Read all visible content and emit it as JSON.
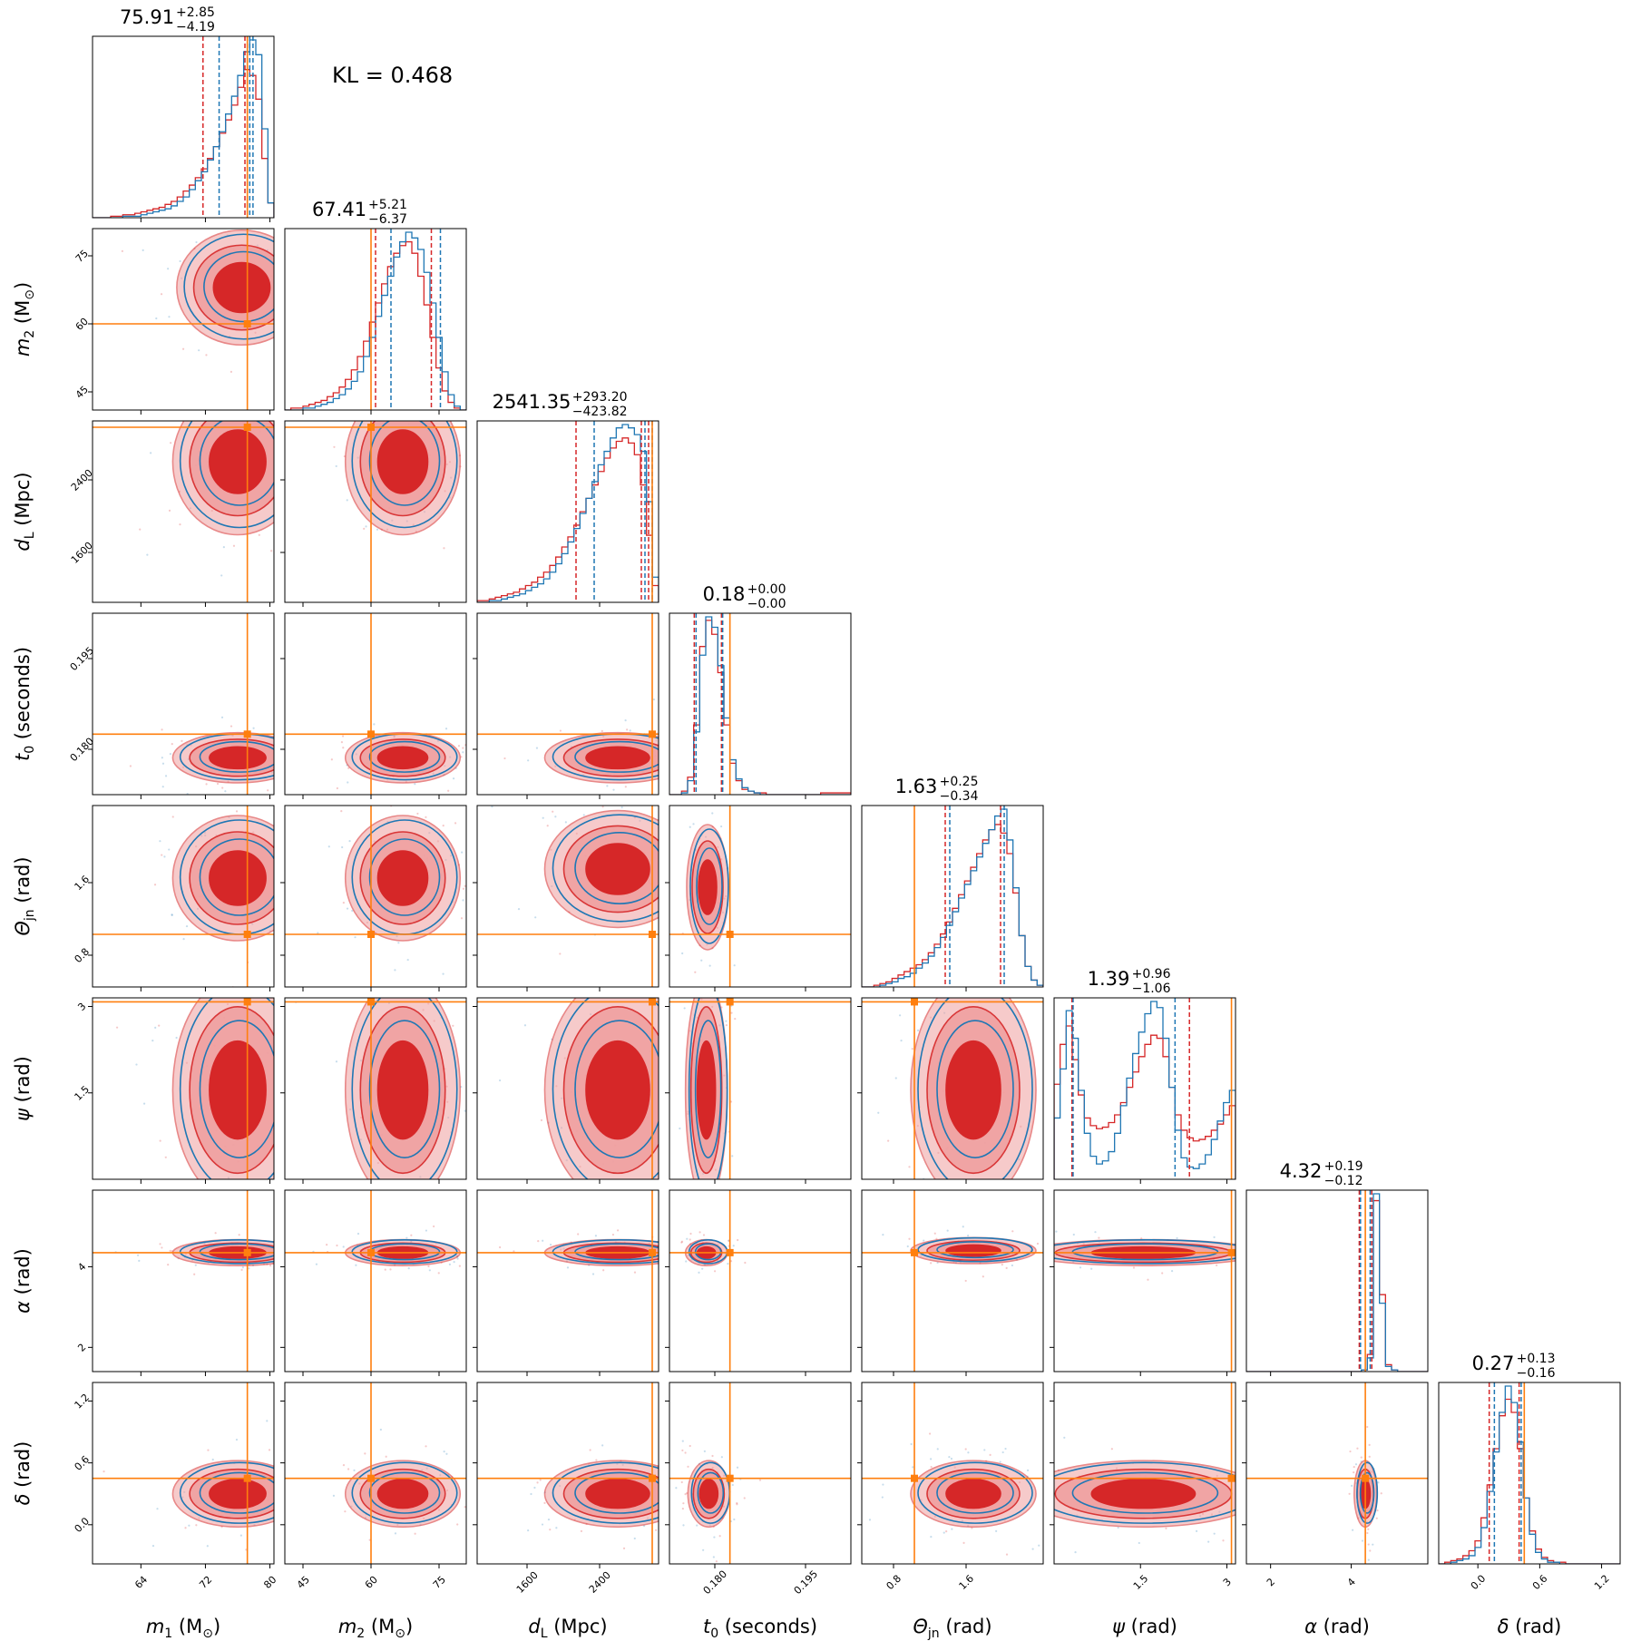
{
  "kl_text": "KL = 0.468",
  "chart_data": {
    "type": "corner",
    "colors": {
      "red": "#d62728",
      "red_light": "#f0a0a0",
      "blue": "#1f77b4",
      "truth": "#ff7f0e"
    },
    "parameters": [
      {
        "key": "m1",
        "label_var": "m",
        "label_sub": "1",
        "label_unit": "(M",
        "label_unit_sub": "⊙",
        "label_unit_end": ")",
        "range": [
          58,
          80.5
        ],
        "ticks": [
          64,
          72,
          80
        ],
        "truth": 77.2,
        "title_main": "75.91",
        "title_plus": "+2.85",
        "title_minus": "−4.19",
        "red_quantiles": [
          71.7,
          76.9,
          77.2
        ],
        "blue_quantiles": [
          73.7,
          77.5,
          77.9
        ]
      },
      {
        "key": "m2",
        "label_var": "m",
        "label_sub": "2",
        "label_unit": "(M",
        "label_unit_sub": "⊙",
        "label_unit_end": ")",
        "range": [
          41,
          81
        ],
        "ticks": [
          45,
          60,
          75
        ],
        "truth": 60,
        "title_main": "67.41",
        "title_plus": "+5.21",
        "title_minus": "−6.37",
        "red_quantiles": [
          61.0,
          73.3
        ],
        "blue_quantiles": [
          64.4,
          75.3
        ]
      },
      {
        "key": "dL",
        "label_var": "d",
        "label_sub": "L",
        "label_unit": "(Mpc)",
        "label_unit_sub": "",
        "label_unit_end": "",
        "range": [
          1050,
          3050
        ],
        "ticks": [
          1600,
          2400
        ],
        "truth": 2980,
        "title_main": "2541.35",
        "title_plus": "+293.20",
        "title_minus": "−423.82",
        "red_quantiles": [
          2140,
          2860,
          2940
        ],
        "blue_quantiles": [
          2340,
          2900,
          2980
        ]
      },
      {
        "key": "t0",
        "label_var": "t",
        "label_sub": "0",
        "label_unit": "(seconds)",
        "label_unit_sub": "",
        "label_unit_end": "",
        "range": [
          0.1725,
          0.2025
        ],
        "ticks": [
          0.18,
          0.195
        ],
        "truth": 0.1825,
        "tick_labels": [
          "0.180",
          "0.195"
        ],
        "title_main": "0.18",
        "title_plus": "+0.00",
        "title_minus": "−0.00",
        "red_quantiles": [
          0.1766,
          0.1811
        ],
        "blue_quantiles": [
          0.1769,
          0.1813
        ]
      },
      {
        "key": "theta_jn",
        "label_var": "Θ",
        "label_sub": "jn",
        "label_unit": "(rad)",
        "label_unit_sub": "",
        "label_unit_end": "",
        "range": [
          0.45,
          2.45
        ],
        "ticks": [
          0.8,
          1.6
        ],
        "truth": 1.03,
        "title_main": "1.63",
        "title_plus": "+0.25",
        "title_minus": "−0.34",
        "red_quantiles": [
          1.37,
          1.98
        ],
        "blue_quantiles": [
          1.42,
          2.02
        ]
      },
      {
        "key": "psi",
        "label_var": "ψ",
        "label_sub": "",
        "label_unit": "(rad)",
        "label_unit_sub": "",
        "label_unit_end": "",
        "range": [
          0.0,
          3.15
        ],
        "ticks": [
          1.5,
          3.0
        ],
        "truth": 3.08,
        "title_main": "1.39",
        "title_plus": "+0.96",
        "title_minus": "−1.06",
        "red_quantiles": [
          0.31,
          2.35
        ],
        "blue_quantiles": [
          0.33,
          2.1
        ]
      },
      {
        "key": "alpha",
        "label_var": "α",
        "label_sub": "",
        "label_unit": "(rad)",
        "label_unit_sub": "",
        "label_unit_end": "",
        "range": [
          1.4,
          5.9
        ],
        "ticks": [
          2,
          4
        ],
        "truth": 4.35,
        "title_main": "4.32",
        "title_plus": "+0.19",
        "title_minus": "−0.12",
        "red_quantiles": [
          4.2,
          4.51
        ],
        "blue_quantiles": [
          4.23,
          4.47
        ]
      },
      {
        "key": "delta",
        "label_var": "δ",
        "label_sub": "",
        "label_unit": "(rad)",
        "label_unit_sub": "",
        "label_unit_end": "",
        "range": [
          -0.38,
          1.38
        ],
        "ticks": [
          0.0,
          0.6,
          1.2
        ],
        "truth": 0.45,
        "tick_labels": [
          "0.0",
          "0.6",
          "1.2"
        ],
        "title_main": "0.27",
        "title_plus": "+0.13",
        "title_minus": "−0.16",
        "red_quantiles": [
          0.11,
          0.4
        ],
        "blue_quantiles": [
          0.16,
          0.42
        ]
      }
    ],
    "histograms_1d": {
      "m1": {
        "red": [
          0,
          0,
          0,
          1,
          1,
          2,
          2,
          3,
          4,
          5,
          6,
          7,
          9,
          11,
          14,
          18,
          22,
          27,
          33,
          40,
          48,
          57,
          66,
          76,
          88,
          100,
          96,
          80,
          40,
          10
        ],
        "blue": [
          0,
          0,
          0,
          0,
          0,
          1,
          1,
          1,
          2,
          3,
          4,
          5,
          6,
          8,
          11,
          14,
          19,
          25,
          31,
          39,
          48,
          58,
          70,
          82,
          96,
          112,
          120,
          110,
          60,
          10
        ]
      },
      "m2": {
        "red": [
          0,
          1,
          1,
          2,
          3,
          4,
          5,
          7,
          9,
          12,
          16,
          21,
          28,
          36,
          46,
          56,
          66,
          75,
          82,
          86,
          88,
          82,
          70,
          55,
          38,
          22,
          10,
          4,
          1,
          0
        ],
        "blue": [
          0,
          0,
          0,
          1,
          1,
          2,
          3,
          4,
          6,
          8,
          11,
          15,
          20,
          28,
          38,
          49,
          60,
          70,
          80,
          88,
          93,
          90,
          84,
          72,
          56,
          38,
          20,
          8,
          2,
          0
        ]
      },
      "dL": {
        "red": [
          1,
          1,
          2,
          3,
          4,
          5,
          6,
          8,
          10,
          12,
          15,
          18,
          22,
          27,
          33,
          39,
          46,
          54,
          62,
          70,
          78,
          86,
          92,
          96,
          98,
          95,
          88,
          70,
          40,
          10
        ],
        "blue": [
          0,
          0,
          1,
          1,
          2,
          3,
          4,
          5,
          7,
          9,
          11,
          14,
          18,
          23,
          29,
          36,
          44,
          53,
          62,
          72,
          82,
          90,
          98,
          104,
          106,
          104,
          100,
          90,
          60,
          15
        ]
      },
      "t0": {
        "red": [
          0,
          0,
          2,
          10,
          40,
          85,
          100,
          92,
          70,
          40,
          18,
          8,
          3,
          2,
          1,
          1,
          0,
          0,
          0,
          0,
          0,
          0,
          0,
          0,
          0,
          1,
          1,
          1,
          1,
          1
        ],
        "blue": [
          0,
          0,
          1,
          8,
          36,
          80,
          102,
          96,
          74,
          44,
          20,
          9,
          4,
          2,
          1,
          0,
          0,
          0,
          0,
          0,
          0,
          0,
          0,
          0,
          0,
          0,
          0,
          0,
          0,
          0
        ]
      },
      "theta_jn": {
        "red": [
          0,
          0,
          1,
          2,
          3,
          5,
          7,
          9,
          11,
          13,
          16,
          20,
          25,
          31,
          38,
          46,
          54,
          62,
          70,
          78,
          86,
          92,
          95,
          90,
          78,
          55,
          30,
          12,
          4,
          1
        ],
        "blue": [
          0,
          0,
          0,
          1,
          2,
          3,
          5,
          6,
          8,
          11,
          14,
          18,
          23,
          29,
          36,
          44,
          52,
          60,
          68,
          76,
          84,
          92,
          100,
          104,
          86,
          58,
          30,
          12,
          4,
          1
        ]
      },
      "psi": {
        "red": [
          62,
          88,
          100,
          78,
          55,
          40,
          35,
          33,
          34,
          37,
          42,
          50,
          60,
          70,
          80,
          88,
          94,
          92,
          80,
          60,
          42,
          32,
          27,
          25,
          26,
          28,
          32,
          36,
          42,
          48
        ],
        "blue": [
          40,
          72,
          110,
          92,
          58,
          30,
          15,
          10,
          12,
          18,
          30,
          48,
          66,
          82,
          96,
          108,
          116,
          112,
          92,
          60,
          32,
          14,
          8,
          7,
          10,
          16,
          26,
          38,
          50,
          58
        ]
      },
      "alpha": {
        "red": [
          0,
          0,
          0,
          0,
          0,
          0,
          0,
          0,
          0,
          0,
          0,
          0,
          0,
          0,
          0,
          0,
          0,
          0,
          0,
          1,
          10,
          100,
          45,
          4,
          1,
          0,
          0,
          0,
          0,
          0
        ],
        "blue": [
          0,
          0,
          0,
          0,
          0,
          0,
          0,
          0,
          0,
          0,
          0,
          0,
          0,
          0,
          0,
          0,
          0,
          0,
          0,
          1,
          8,
          104,
          40,
          3,
          1,
          0,
          0,
          0,
          0,
          0
        ]
      },
      "delta": {
        "red": [
          0,
          1,
          2,
          3,
          5,
          8,
          14,
          28,
          48,
          70,
          90,
          100,
          92,
          70,
          40,
          20,
          9,
          4,
          2,
          1,
          1,
          0,
          0,
          0,
          0,
          0,
          0,
          0,
          0,
          0
        ],
        "blue": [
          0,
          0,
          1,
          2,
          3,
          5,
          10,
          22,
          44,
          68,
          92,
          108,
          98,
          74,
          40,
          18,
          7,
          3,
          1,
          1,
          0,
          0,
          0,
          0,
          0,
          0,
          0,
          0,
          0,
          0
        ]
      }
    },
    "blobs_2d": {
      "m1|m2": {
        "cx": 76.5,
        "cy": 68,
        "sx": 3.5,
        "sy": 5.5
      },
      "m1|dL": {
        "cx": 76,
        "cy": 2600,
        "sx": 3.5,
        "sy": 350
      },
      "m2|dL": {
        "cx": 67,
        "cy": 2600,
        "sx": 5.5,
        "sy": 350
      },
      "m1|t0": {
        "cx": 76,
        "cy": 0.1786,
        "sx": 3.5,
        "sy": 0.0018
      },
      "m2|t0": {
        "cx": 67,
        "cy": 0.1786,
        "sx": 5.5,
        "sy": 0.0018
      },
      "dL|t0": {
        "cx": 2600,
        "cy": 0.1786,
        "sx": 350,
        "sy": 0.0018
      },
      "m1|theta_jn": {
        "cx": 76,
        "cy": 1.65,
        "sx": 3.5,
        "sy": 0.3
      },
      "m2|theta_jn": {
        "cx": 67,
        "cy": 1.65,
        "sx": 5.5,
        "sy": 0.3
      },
      "dL|theta_jn": {
        "cx": 2600,
        "cy": 1.75,
        "sx": 350,
        "sy": 0.28
      },
      "t0|theta_jn": {
        "cx": 0.1788,
        "cy": 1.55,
        "sx": 0.0015,
        "sy": 0.3
      },
      "m1|psi": {
        "cx": 76,
        "cy": 1.55,
        "sx": 3.5,
        "sy": 0.85
      },
      "m2|psi": {
        "cx": 67,
        "cy": 1.55,
        "sx": 5.5,
        "sy": 0.85
      },
      "dL|psi": {
        "cx": 2600,
        "cy": 1.55,
        "sx": 350,
        "sy": 0.85
      },
      "t0|psi": {
        "cx": 0.1786,
        "cy": 1.55,
        "sx": 0.0015,
        "sy": 0.85
      },
      "theta_jn|psi": {
        "cx": 1.68,
        "cy": 1.55,
        "sx": 0.3,
        "sy": 0.85
      },
      "m1|alpha": {
        "cx": 76,
        "cy": 4.35,
        "sx": 3.5,
        "sy": 0.14
      },
      "m2|alpha": {
        "cx": 67,
        "cy": 4.35,
        "sx": 5.5,
        "sy": 0.14
      },
      "dL|alpha": {
        "cx": 2600,
        "cy": 4.35,
        "sx": 350,
        "sy": 0.14
      },
      "t0|alpha": {
        "cx": 0.1786,
        "cy": 4.35,
        "sx": 0.0015,
        "sy": 0.14
      },
      "theta_jn|alpha": {
        "cx": 1.68,
        "cy": 4.4,
        "sx": 0.3,
        "sy": 0.14
      },
      "psi|alpha": {
        "cx": 1.55,
        "cy": 4.35,
        "sx": 0.9,
        "sy": 0.14
      },
      "m1|delta": {
        "cx": 76,
        "cy": 0.3,
        "sx": 3.5,
        "sy": 0.14
      },
      "m2|delta": {
        "cx": 67,
        "cy": 0.3,
        "sx": 5.5,
        "sy": 0.14
      },
      "dL|delta": {
        "cx": 2600,
        "cy": 0.3,
        "sx": 350,
        "sy": 0.14
      },
      "t0|delta": {
        "cx": 0.179,
        "cy": 0.3,
        "sx": 0.0015,
        "sy": 0.14
      },
      "theta_jn|delta": {
        "cx": 1.68,
        "cy": 0.3,
        "sx": 0.3,
        "sy": 0.14
      },
      "psi|delta": {
        "cx": 1.55,
        "cy": 0.3,
        "sx": 0.9,
        "sy": 0.14
      },
      "alpha|delta": {
        "cx": 4.35,
        "cy": 0.3,
        "sx": 0.12,
        "sy": 0.14
      }
    }
  }
}
